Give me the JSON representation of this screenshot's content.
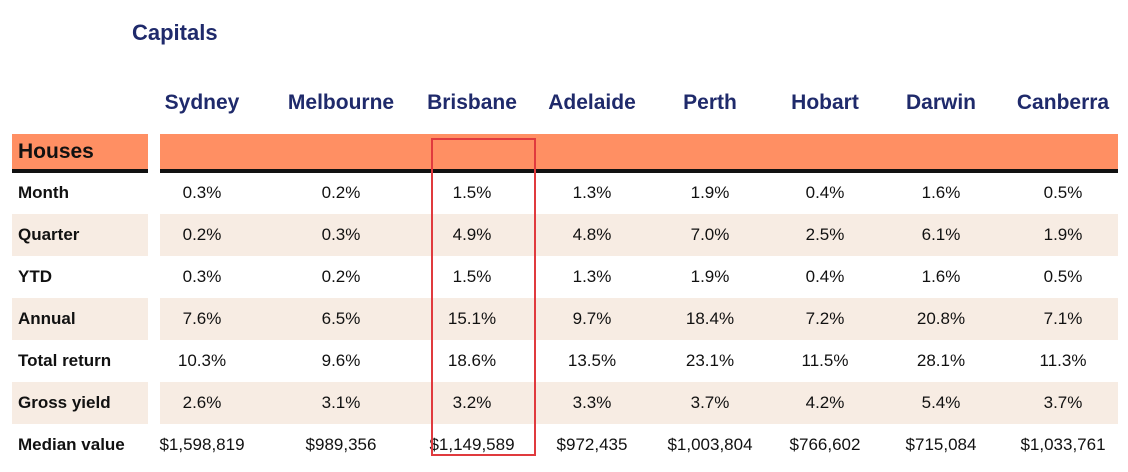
{
  "title": "Capitals",
  "cities": [
    "Sydney",
    "Melbourne",
    "Brisbane",
    "Adelaide",
    "Perth",
    "Hobart",
    "Darwin",
    "Canberra"
  ],
  "section": "Houses",
  "rows": [
    {
      "label": "Month",
      "values": [
        "0.3%",
        "0.2%",
        "1.5%",
        "1.3%",
        "1.9%",
        "0.4%",
        "1.6%",
        "0.5%"
      ]
    },
    {
      "label": "Quarter",
      "values": [
        "0.2%",
        "0.3%",
        "4.9%",
        "4.8%",
        "7.0%",
        "2.5%",
        "6.1%",
        "1.9%"
      ]
    },
    {
      "label": "YTD",
      "values": [
        "0.3%",
        "0.2%",
        "1.5%",
        "1.3%",
        "1.9%",
        "0.4%",
        "1.6%",
        "0.5%"
      ]
    },
    {
      "label": "Annual",
      "values": [
        "7.6%",
        "6.5%",
        "15.1%",
        "9.7%",
        "18.4%",
        "7.2%",
        "20.8%",
        "7.1%"
      ]
    },
    {
      "label": "Total return",
      "values": [
        "10.3%",
        "9.6%",
        "18.6%",
        "13.5%",
        "23.1%",
        "11.5%",
        "28.1%",
        "11.3%"
      ]
    },
    {
      "label": "Gross yield",
      "values": [
        "2.6%",
        "3.1%",
        "3.2%",
        "3.3%",
        "3.7%",
        "4.2%",
        "5.4%",
        "3.7%"
      ]
    },
    {
      "label": "Median value",
      "values": [
        "$1,598,819",
        "$989,356",
        "$1,149,589",
        "$972,435",
        "$1,003,804",
        "$766,602",
        "$715,084",
        "$1,033,761"
      ]
    }
  ],
  "highlighted_city": "Brisbane",
  "colors": {
    "header_text": "#1f2a6b",
    "section_band": "#ff8f63",
    "shaded_row": "#f7ece3",
    "highlight_border": "#e03a3e"
  }
}
